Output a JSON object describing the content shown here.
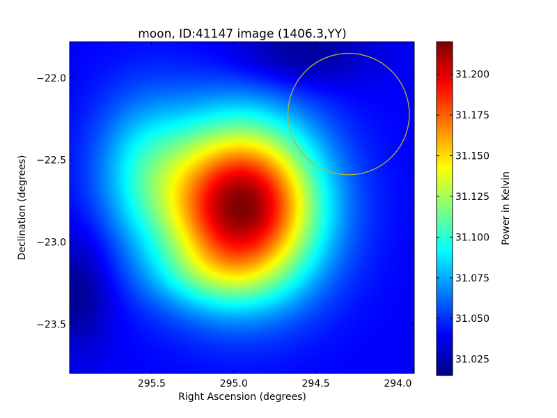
{
  "chart_data": {
    "type": "heatmap",
    "title": "moon, ID:41147 image (1406.3,YY)",
    "xlabel": "Right Ascension (degrees)",
    "ylabel": "Declination (degrees)",
    "colorbar_label": "Power in Kelvin",
    "colormap": "jet",
    "xlim": [
      296.0,
      293.9
    ],
    "ylim": [
      -23.8,
      -21.78
    ],
    "x_ticks": [
      295.5,
      295.0,
      294.5,
      294.0
    ],
    "x_tick_labels": [
      "295.5",
      "295.0",
      "294.5",
      "294.0"
    ],
    "y_ticks": [
      -22.0,
      -22.5,
      -23.0,
      -23.5
    ],
    "y_tick_labels": [
      "−22.0",
      "−22.5",
      "−23.0",
      "−23.5"
    ],
    "color_range": [
      31.015,
      31.22
    ],
    "colorbar_ticks": [
      31.025,
      31.05,
      31.075,
      31.1,
      31.125,
      31.15,
      31.175,
      31.2
    ],
    "colorbar_tick_labels": [
      "31.025",
      "31.050",
      "31.075",
      "31.100",
      "31.125",
      "31.150",
      "31.175",
      "31.200"
    ],
    "background_level": 31.04,
    "components": [
      {
        "ra": 294.95,
        "dec": -22.78,
        "amplitude": 0.18,
        "sigma_ra": 0.33,
        "sigma_dec": 0.36
      },
      {
        "ra": 295.55,
        "dec": -22.55,
        "amplitude": 0.04,
        "sigma_ra": 0.22,
        "sigma_dec": 0.32
      },
      {
        "ra": 295.15,
        "dec": -23.2,
        "amplitude": 0.02,
        "sigma_ra": 0.3,
        "sigma_dec": 0.15
      },
      {
        "ra": 294.6,
        "dec": -21.85,
        "amplitude": -0.022,
        "sigma_ra": 0.3,
        "sigma_dec": 0.15
      },
      {
        "ra": 295.95,
        "dec": -23.3,
        "amplitude": -0.022,
        "sigma_ra": 0.15,
        "sigma_dec": 0.25
      }
    ],
    "circle": {
      "ra": 294.3,
      "dec": -22.22,
      "radius_deg": 0.37,
      "color": "#bdb534"
    }
  }
}
